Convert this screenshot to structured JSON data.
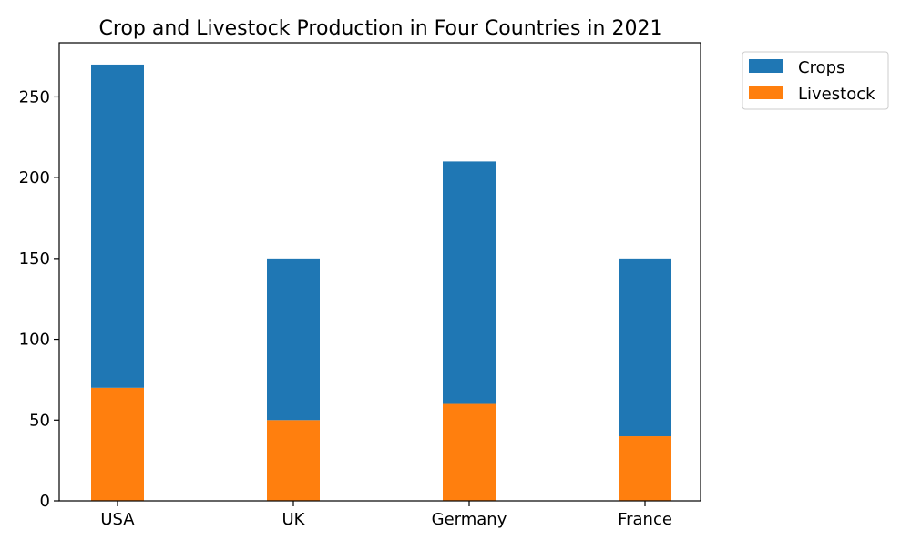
{
  "chart_data": {
    "type": "bar",
    "stacked": true,
    "title": "Crop and Livestock Production in Four Countries in 2021",
    "xlabel": "",
    "ylabel": "",
    "categories": [
      "USA",
      "UK",
      "Germany",
      "France"
    ],
    "series": [
      {
        "name": "Livestock",
        "values": [
          70,
          50,
          60,
          40
        ],
        "color": "#ff7f0e"
      },
      {
        "name": "Crops",
        "values": [
          200,
          100,
          150,
          110
        ],
        "color": "#1f77b4"
      }
    ],
    "ylim": [
      0,
      283.5
    ],
    "yticks": [
      0,
      50,
      100,
      150,
      200,
      250
    ],
    "grid": false,
    "legend": {
      "placement": "outside-top-right",
      "entries": [
        "Crops",
        "Livestock"
      ]
    }
  }
}
